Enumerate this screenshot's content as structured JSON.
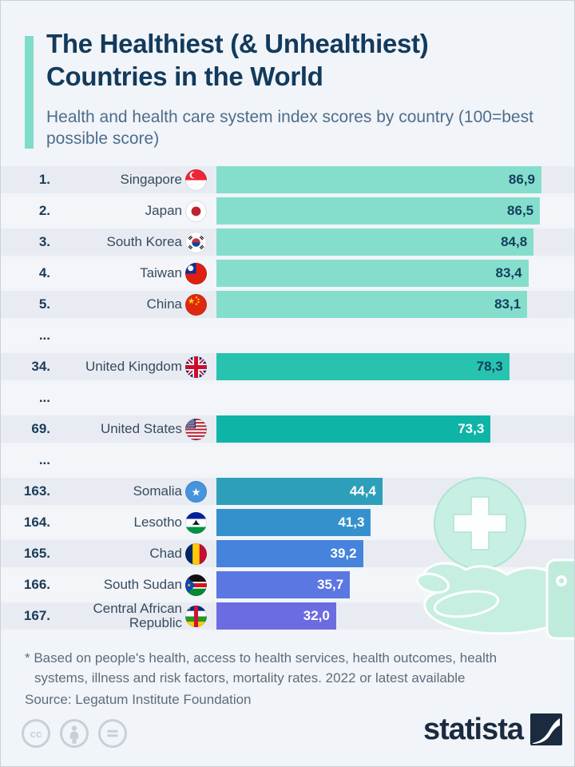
{
  "header": {
    "title_line1": "The Healthiest (& Unhealthiest)",
    "title_line2": "Countries in the World",
    "subtitle": "Health and health care system index scores by country (100=best possible score)"
  },
  "chart_data": {
    "type": "bar",
    "title": "The Healthiest (& Unhealthiest) Countries in the World",
    "subtitle": "Health and health care system index scores by country (100=best possible score)",
    "value_format": "decimal comma",
    "axis": "none (data labels inside bars)",
    "bar_full_scale": 86.9,
    "value_range": [
      0,
      100
    ],
    "rows": [
      {
        "kind": "bar",
        "rank": "1.",
        "country": "Singapore",
        "flag": "sg",
        "value": 86.9,
        "display": "86,9",
        "bar_color": "#85DECC",
        "value_color": "#14405F"
      },
      {
        "kind": "bar",
        "rank": "2.",
        "country": "Japan",
        "flag": "jp",
        "value": 86.5,
        "display": "86,5",
        "bar_color": "#85DECC",
        "value_color": "#14405F"
      },
      {
        "kind": "bar",
        "rank": "3.",
        "country": "South Korea",
        "flag": "kr",
        "value": 84.8,
        "display": "84,8",
        "bar_color": "#85DECC",
        "value_color": "#14405F"
      },
      {
        "kind": "bar",
        "rank": "4.",
        "country": "Taiwan",
        "flag": "tw",
        "value": 83.4,
        "display": "83,4",
        "bar_color": "#85DECC",
        "value_color": "#14405F"
      },
      {
        "kind": "bar",
        "rank": "5.",
        "country": "China",
        "flag": "cn",
        "value": 83.1,
        "display": "83,1",
        "bar_color": "#85DECC",
        "value_color": "#14405F"
      },
      {
        "kind": "ellipsis",
        "label": "..."
      },
      {
        "kind": "bar",
        "rank": "34.",
        "country": "United Kingdom",
        "flag": "gb",
        "value": 78.3,
        "display": "78,3",
        "bar_color": "#27C3AF",
        "value_color": "#14405F"
      },
      {
        "kind": "ellipsis",
        "label": "..."
      },
      {
        "kind": "bar",
        "rank": "69.",
        "country": "United States",
        "flag": "us",
        "value": 73.3,
        "display": "73,3",
        "bar_color": "#0EB4A5",
        "value_color": "#FFFFFF"
      },
      {
        "kind": "ellipsis",
        "label": "..."
      },
      {
        "kind": "bar",
        "rank": "163.",
        "country": "Somalia",
        "flag": "so",
        "value": 44.4,
        "display": "44,4",
        "bar_color": "#2D9FBA",
        "value_color": "#FFFFFF"
      },
      {
        "kind": "bar",
        "rank": "164.",
        "country": "Lesotho",
        "flag": "ls",
        "value": 41.3,
        "display": "41,3",
        "bar_color": "#3590CE",
        "value_color": "#FFFFFF"
      },
      {
        "kind": "bar",
        "rank": "165.",
        "country": "Chad",
        "flag": "td",
        "value": 39.2,
        "display": "39,2",
        "bar_color": "#4683DC",
        "value_color": "#FFFFFF"
      },
      {
        "kind": "bar",
        "rank": "166.",
        "country": "South Sudan",
        "flag": "ss",
        "value": 35.7,
        "display": "35,7",
        "bar_color": "#5A77E2",
        "value_color": "#FFFFFF"
      },
      {
        "kind": "bar",
        "rank": "167.",
        "country": "Central African Republic",
        "flag": "cf",
        "value": 32.0,
        "display": "32,0",
        "bar_color": "#6C6CE2",
        "value_color": "#FFFFFF"
      }
    ]
  },
  "decoration": {
    "icons": [
      "medical-cross-icon",
      "hand-icon"
    ],
    "color": "#C6EEE1"
  },
  "footer": {
    "note": "* Based on people's health, access to health services, health outcomes, health systems, illness and risk factors, mortality rates. 2022 or latest available",
    "source": "Source: Legatum Institute Foundation"
  },
  "branding": {
    "logo_text": "statista",
    "logo_color": "#1A2B40",
    "license_icons": [
      "cc-icon",
      "cc-by-icon",
      "cc-nd-icon"
    ]
  },
  "colors": {
    "background": "#F1F4F8",
    "band_dark": "#E8ECF2",
    "band_light": "#F3F5F9",
    "accent": "#7DDCCA",
    "title": "#123A5C",
    "subtitle": "#4E6D8C"
  }
}
